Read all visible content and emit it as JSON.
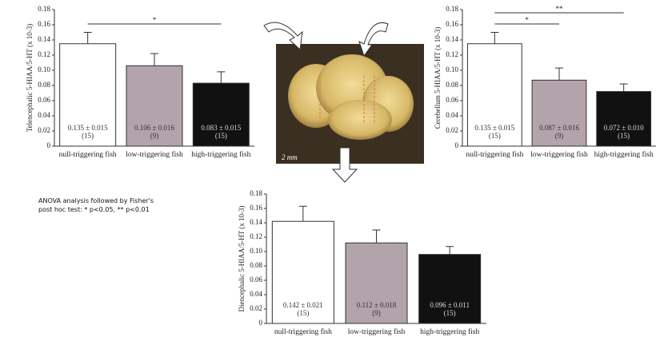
{
  "chart_data": [
    {
      "type": "bar",
      "ylabel": "Telencephalic 5-HIAA/5-HT (x 10-3)",
      "categories": [
        "null-triggering fish",
        "low-triggering fish",
        "high-triggering fish"
      ],
      "values": [
        0.135,
        0.106,
        0.083
      ],
      "errors": [
        0.015,
        0.016,
        0.015
      ],
      "value_labels": [
        "0.135 ± 0.015",
        "0.106 ± 0.016",
        "0.083 ± 0.015"
      ],
      "n_labels": [
        "(15)",
        "(9)",
        "(15)"
      ],
      "colors": [
        "#ffffff",
        "#b3a3aa",
        "#111111"
      ],
      "ylim": [
        0,
        0.18
      ],
      "yticks": [
        0,
        0.02,
        0.04,
        0.06,
        0.08,
        {
          "value": 0.1,
          "label": "0.10"
        },
        0.12,
        0.14,
        0.16,
        0.18
      ],
      "significance": [
        {
          "between": [
            0,
            2
          ],
          "label": "*"
        }
      ]
    },
    {
      "type": "bar",
      "ylabel": "Cerebellum 5-HIAA/5-HT (x 10-3)",
      "categories": [
        "null-triggering fish",
        "low-triggering fish",
        "high-triggering fish"
      ],
      "values": [
        0.135,
        0.087,
        0.072
      ],
      "errors": [
        0.015,
        0.016,
        0.01
      ],
      "value_labels": [
        "0.135 ± 0.015",
        "0.087 ± 0.016",
        "0.072 ± 0.010"
      ],
      "n_labels": [
        "(15)",
        "(9)",
        "(15)"
      ],
      "colors": [
        "#ffffff",
        "#b3a3aa",
        "#111111"
      ],
      "ylim": [
        0,
        0.18
      ],
      "yticks": [
        0,
        0.02,
        0.04,
        0.06,
        0.08,
        {
          "value": 0.1,
          "label": "0.10"
        },
        0.12,
        0.14,
        0.16,
        0.18
      ],
      "significance": [
        {
          "between": [
            0,
            1
          ],
          "label": "*"
        },
        {
          "between": [
            0,
            2
          ],
          "label": "**"
        }
      ]
    },
    {
      "type": "bar",
      "ylabel": "Diencephalic 5-HIAA/5-HT (x 10-3)",
      "categories": [
        "null-triggering fish",
        "low-triggering fish",
        "high-triggering fish"
      ],
      "values": [
        0.142,
        0.112,
        0.096
      ],
      "errors": [
        0.021,
        0.018,
        0.011
      ],
      "value_labels": [
        "0.142 ± 0.021",
        "0.112 ± 0.018",
        "0.096 ± 0.011"
      ],
      "n_labels": [
        "(15)",
        "(9)",
        "(15)"
      ],
      "colors": [
        "#ffffff",
        "#b3a3aa",
        "#111111"
      ],
      "ylim": [
        0,
        0.18
      ],
      "yticks": [
        0,
        0.02,
        0.04,
        0.06,
        0.08,
        {
          "value": 0.1,
          "label": "0.10"
        },
        0.12,
        0.14,
        0.16,
        0.18
      ],
      "significance": []
    }
  ],
  "annotation": [
    "ANOVA analysis followed by Fisher's",
    "post hoc test: * p<0.05, ** p<0.01"
  ],
  "photo_scale": "2 mm"
}
